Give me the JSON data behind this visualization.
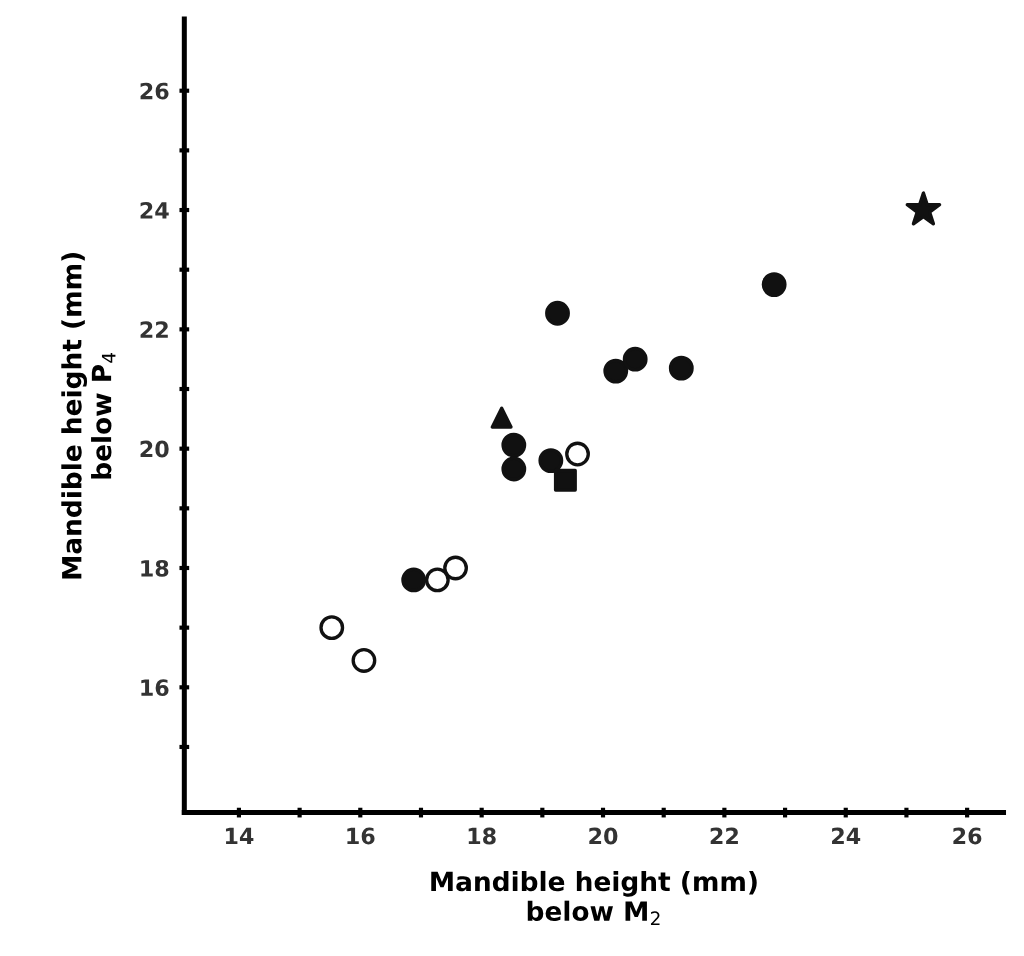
{
  "chart_data": {
    "type": "scatter",
    "xlabel": "Mandible height (mm)\nbelow M$_{2}$",
    "ylabel": "Mandible height (mm)\nbelow P$_{4}$",
    "xlim": [
      13.1,
      26.6
    ],
    "ylim": [
      13.9,
      27.2
    ],
    "xticks": [
      14,
      {
        "value": 15,
        "label": null
      },
      16,
      {
        "value": 17,
        "label": null
      },
      18,
      {
        "value": 19,
        "label": null
      },
      20,
      {
        "value": 21,
        "label": null
      },
      22,
      {
        "value": 23,
        "label": null
      },
      24,
      {
        "value": 25,
        "label": null
      },
      26
    ],
    "yticks": [
      {
        "value": 15,
        "label": null
      },
      16,
      {
        "value": 17,
        "label": null
      },
      18,
      {
        "value": 19,
        "label": null
      },
      20,
      {
        "value": 21,
        "label": null
      },
      22,
      {
        "value": 23,
        "label": null
      },
      24,
      {
        "value": 25,
        "label": null
      },
      26
    ],
    "grid": false,
    "legend": false,
    "series": [
      {
        "color": "#111111",
        "marker": "circle",
        "x": [
          22.82,
          19.25,
          20.21,
          20.53,
          21.29,
          18.53,
          18.53,
          19.14,
          16.88
        ],
        "values": [
          22.75,
          22.27,
          21.3,
          21.5,
          21.35,
          20.06,
          19.66,
          19.8,
          17.8
        ]
      },
      {
        "color": "#ffffff",
        "marker": "circle",
        "x": [
          17.27,
          17.57,
          15.53,
          16.06
        ],
        "values": [
          17.8,
          18.0,
          17.0,
          16.45
        ]
      },
      {
        "color": "#ffffff",
        "marker": "circle",
        "x": [
          19.58
        ],
        "values": [
          19.91
        ]
      },
      {
        "color": "#111111",
        "marker": "square",
        "x": [
          19.38
        ],
        "values": [
          19.47
        ]
      },
      {
        "color": "#111111",
        "marker": "triangle",
        "x": [
          18.33
        ],
        "values": [
          20.52
        ]
      },
      {
        "color": "#111111",
        "marker": "star",
        "x": [
          25.28
        ],
        "values": [
          24.0
        ]
      }
    ]
  }
}
